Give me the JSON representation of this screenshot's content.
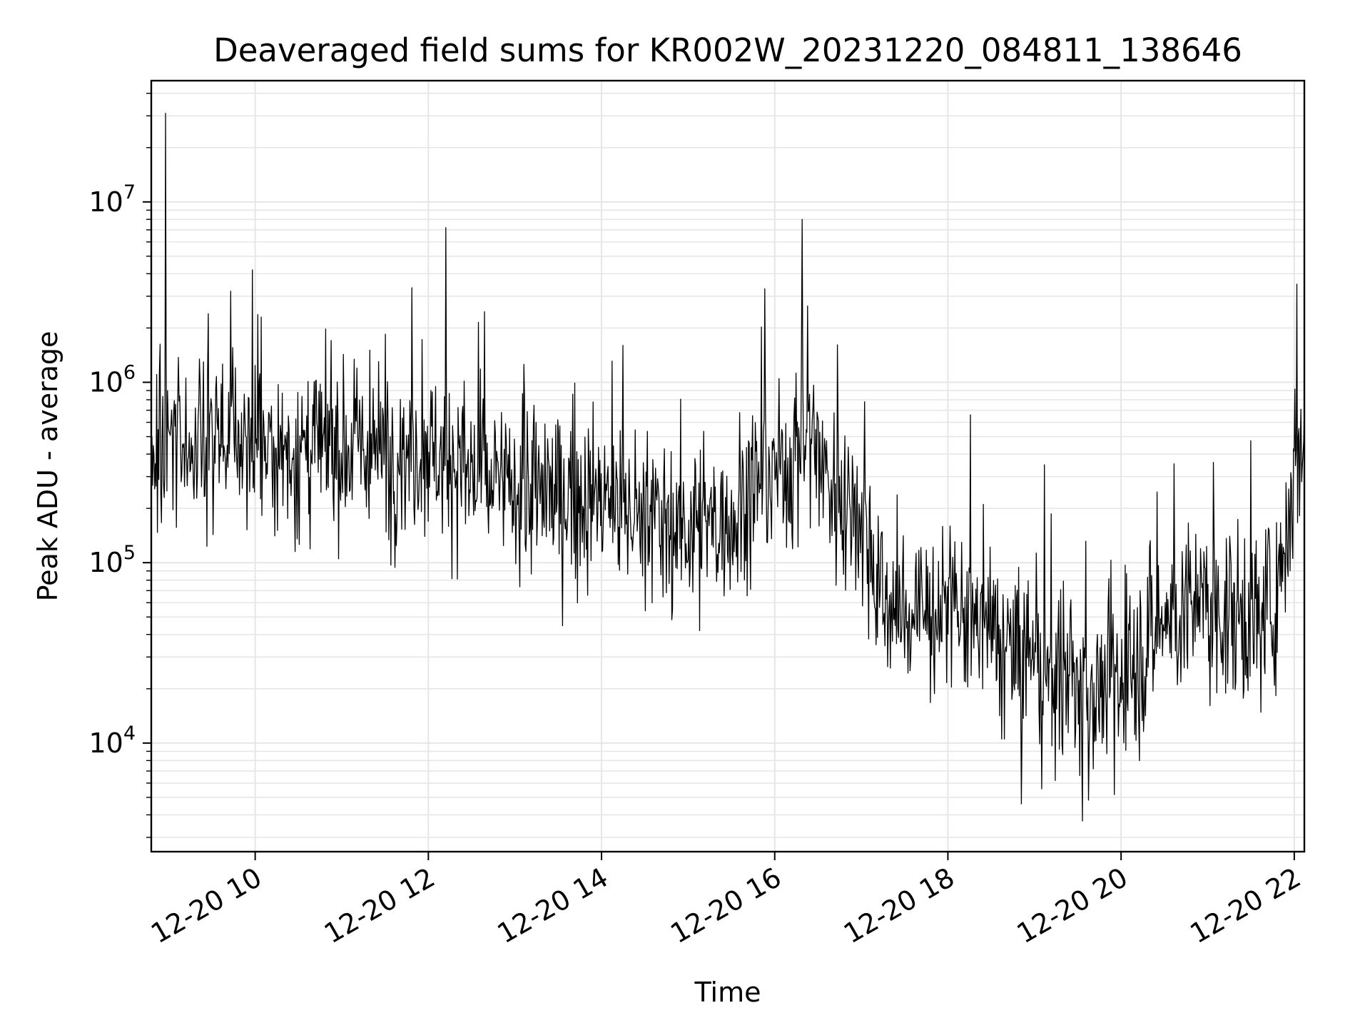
{
  "chart_data": {
    "type": "line",
    "title": "Deaveraged field sums for KR002W_20231220_084811_138646",
    "xlabel": "Time",
    "ylabel": "Peak ADU - average",
    "yscale": "log",
    "ylim": [
      2500,
      47000000
    ],
    "xlim": [
      "2023-12-20 08:48",
      "2023-12-20 22:07"
    ],
    "grid": true,
    "line_color": "#000000",
    "x_ticks": [
      "12-20 10",
      "12-20 12",
      "12-20 14",
      "12-20 16",
      "12-20 18",
      "12-20 20",
      "12-20 22"
    ],
    "y_ticks": [
      {
        "base": "10",
        "exp": "4"
      },
      {
        "base": "10",
        "exp": "5"
      },
      {
        "base": "10",
        "exp": "6"
      },
      {
        "base": "10",
        "exp": "7"
      }
    ],
    "series": [
      {
        "x": [
          "2023-12-20 08:48",
          "2023-12-20 09:00",
          "2023-12-20 09:15",
          "2023-12-20 09:30",
          "2023-12-20 09:45",
          "2023-12-20 10:00",
          "2023-12-20 10:30",
          "2023-12-20 11:00",
          "2023-12-20 11:30",
          "2023-12-20 12:00",
          "2023-12-20 12:20",
          "2023-12-20 12:40",
          "2023-12-20 13:00",
          "2023-12-20 13:30",
          "2023-12-20 14:00",
          "2023-12-20 14:30",
          "2023-12-20 15:00",
          "2023-12-20 15:30",
          "2023-12-20 15:50",
          "2023-12-20 16:10",
          "2023-12-20 16:25",
          "2023-12-20 16:40",
          "2023-12-20 17:00",
          "2023-12-20 17:15",
          "2023-12-20 17:30",
          "2023-12-20 18:00",
          "2023-12-20 18:30",
          "2023-12-20 19:00",
          "2023-12-20 19:30",
          "2023-12-20 20:00",
          "2023-12-20 20:30",
          "2023-12-20 21:00",
          "2023-12-20 21:30",
          "2023-12-20 21:45",
          "2023-12-20 22:00",
          "2023-12-20 22:07"
        ],
        "values": [
          300000,
          500000,
          450000,
          500000,
          550000,
          450000,
          400000,
          450000,
          400000,
          450000,
          350000,
          280000,
          250000,
          240000,
          220000,
          180000,
          160000,
          170000,
          300000,
          350000,
          550000,
          250000,
          200000,
          60000,
          50000,
          55000,
          40000,
          25000,
          20000,
          20000,
          50000,
          55000,
          50000,
          55000,
          300000,
          500000
        ]
      }
    ],
    "spikes": [
      {
        "x": "2023-12-20 08:58",
        "value": 31000000
      },
      {
        "x": "2023-12-20 09:43",
        "value": 3200000
      },
      {
        "x": "2023-12-20 09:58",
        "value": 4200000
      },
      {
        "x": "2023-12-20 12:12",
        "value": 7200000
      },
      {
        "x": "2023-12-20 15:53",
        "value": 3300000
      },
      {
        "x": "2023-12-20 16:19",
        "value": 8000000
      },
      {
        "x": "2023-12-20 22:02",
        "value": 3500000
      }
    ],
    "dips": [
      {
        "x": "2023-12-20 15:08",
        "value": 42000
      },
      {
        "x": "2023-12-20 18:51",
        "value": 4600
      },
      {
        "x": "2023-12-20 19:33",
        "value": 3700
      }
    ]
  }
}
